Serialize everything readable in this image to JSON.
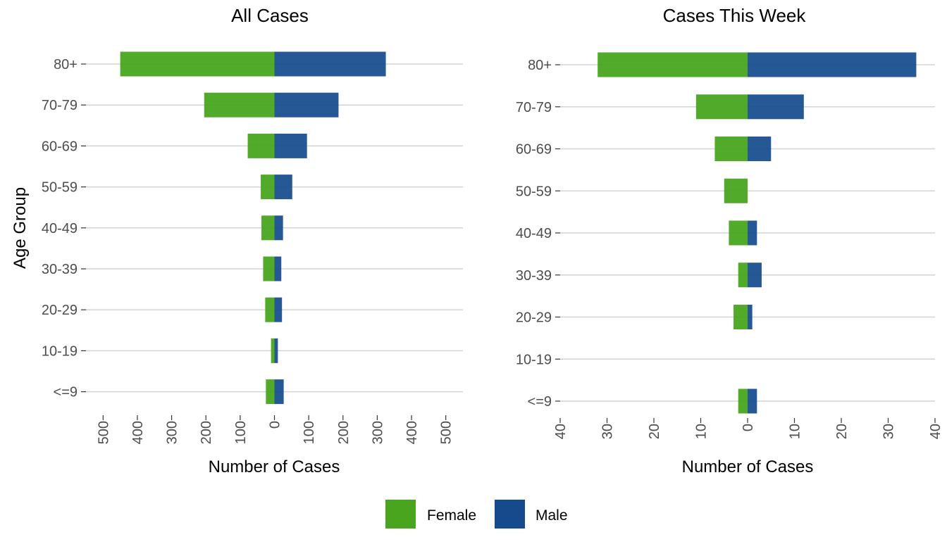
{
  "colors": {
    "female": "#48A51D",
    "male": "#154A8D"
  },
  "chart_data": [
    {
      "type": "bar",
      "orientation": "horizontal-population-pyramid",
      "title": "All Cases",
      "xlabel": "Number of Cases",
      "ylabel": "Age Group",
      "categories": [
        "80+",
        "70-79",
        "60-69",
        "50-59",
        "40-49",
        "30-39",
        "20-29",
        "10-19",
        "<=9"
      ],
      "xlim": [
        -550,
        550
      ],
      "xticks": [
        -500,
        -400,
        -300,
        -200,
        -100,
        0,
        100,
        200,
        300,
        400,
        500
      ],
      "xtick_labels": [
        "500",
        "400",
        "300",
        "200",
        "100",
        "0",
        "100",
        "200",
        "300",
        "400",
        "500"
      ],
      "series": [
        {
          "name": "Female",
          "values": [
            450,
            205,
            78,
            40,
            38,
            33,
            27,
            10,
            25
          ]
        },
        {
          "name": "Male",
          "values": [
            325,
            187,
            95,
            52,
            25,
            20,
            22,
            10,
            27
          ]
        }
      ],
      "grid": true
    },
    {
      "type": "bar",
      "orientation": "horizontal-population-pyramid",
      "title": "Cases This Week",
      "xlabel": "Number of Cases",
      "ylabel": "",
      "categories": [
        "80+",
        "70-79",
        "60-69",
        "50-59",
        "40-49",
        "30-39",
        "20-29",
        "10-19",
        "<=9"
      ],
      "xlim": [
        -40,
        40
      ],
      "xticks": [
        -40,
        -30,
        -20,
        -10,
        0,
        10,
        20,
        30,
        40
      ],
      "xtick_labels": [
        "40",
        "30",
        "20",
        "10",
        "0",
        "10",
        "20",
        "30",
        "40"
      ],
      "series": [
        {
          "name": "Female",
          "values": [
            32,
            11,
            7,
            5,
            4,
            2,
            3,
            0,
            2
          ]
        },
        {
          "name": "Male",
          "values": [
            36,
            12,
            5,
            0,
            2,
            3,
            1,
            0,
            2
          ]
        }
      ],
      "grid": true
    }
  ],
  "legend": {
    "placement": "bottom",
    "items": [
      {
        "label": "Female",
        "color": "#48A51D"
      },
      {
        "label": "Male",
        "color": "#154A8D"
      }
    ]
  }
}
